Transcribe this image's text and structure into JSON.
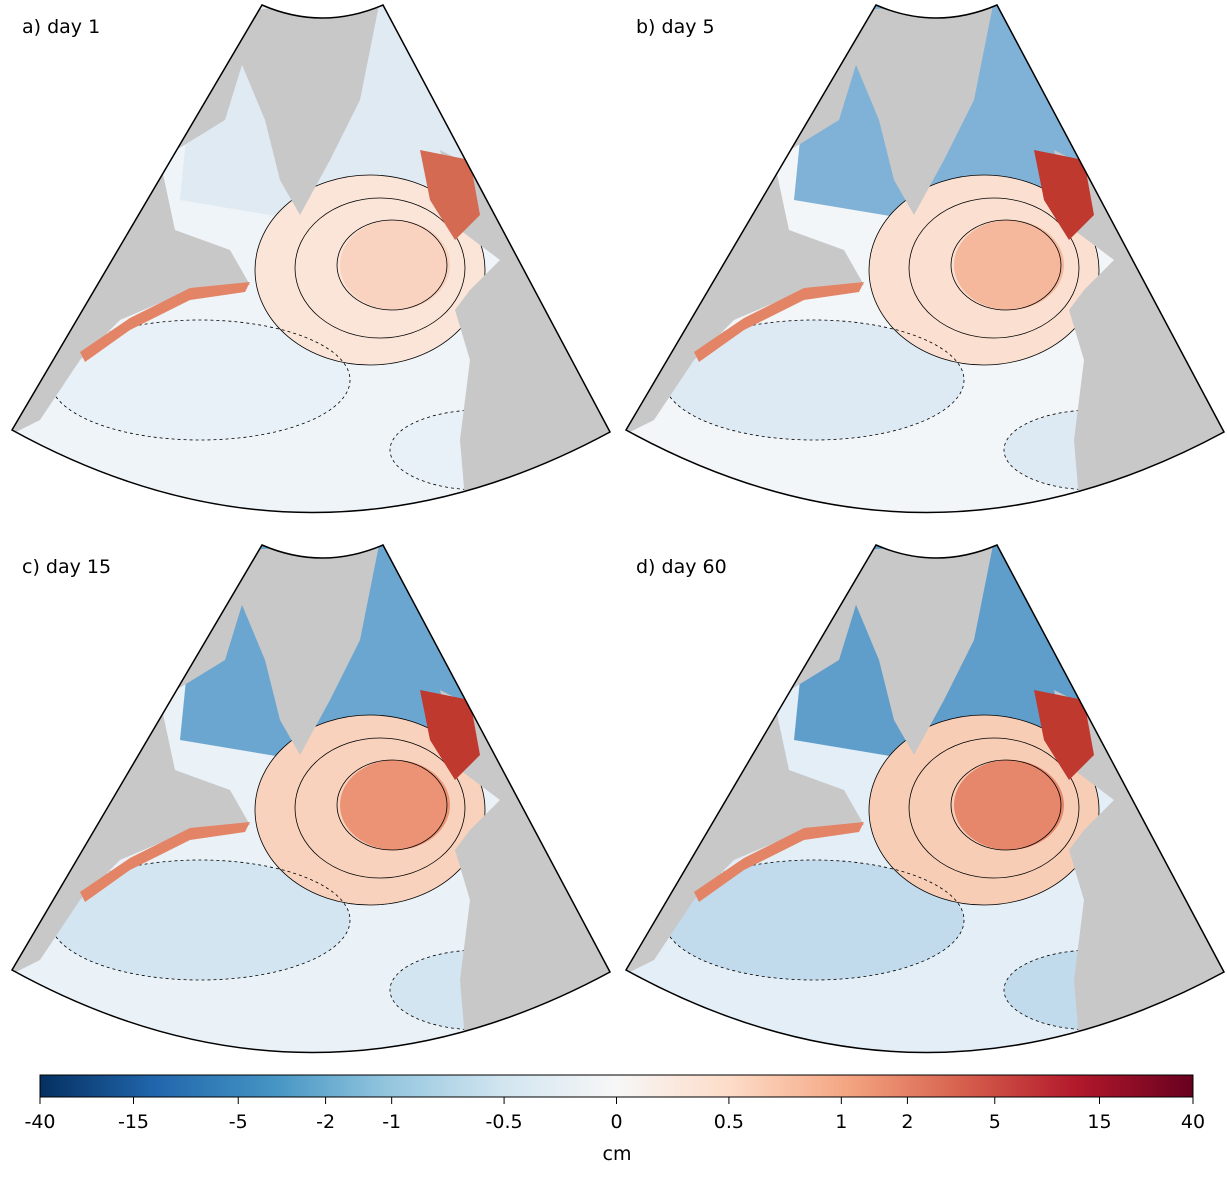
{
  "panels": [
    {
      "label": "a) day 1"
    },
    {
      "label": "b) day 5"
    },
    {
      "label": "c) day 15"
    },
    {
      "label": "d) day 60"
    }
  ],
  "colorbar": {
    "xlim": [
      -40,
      40
    ],
    "scale": "symlog",
    "ticks": [
      -40,
      -15,
      -5,
      -2,
      -1,
      -0.5,
      0,
      0.5,
      1,
      2,
      5,
      15,
      40
    ],
    "label": "cm"
  }
}
